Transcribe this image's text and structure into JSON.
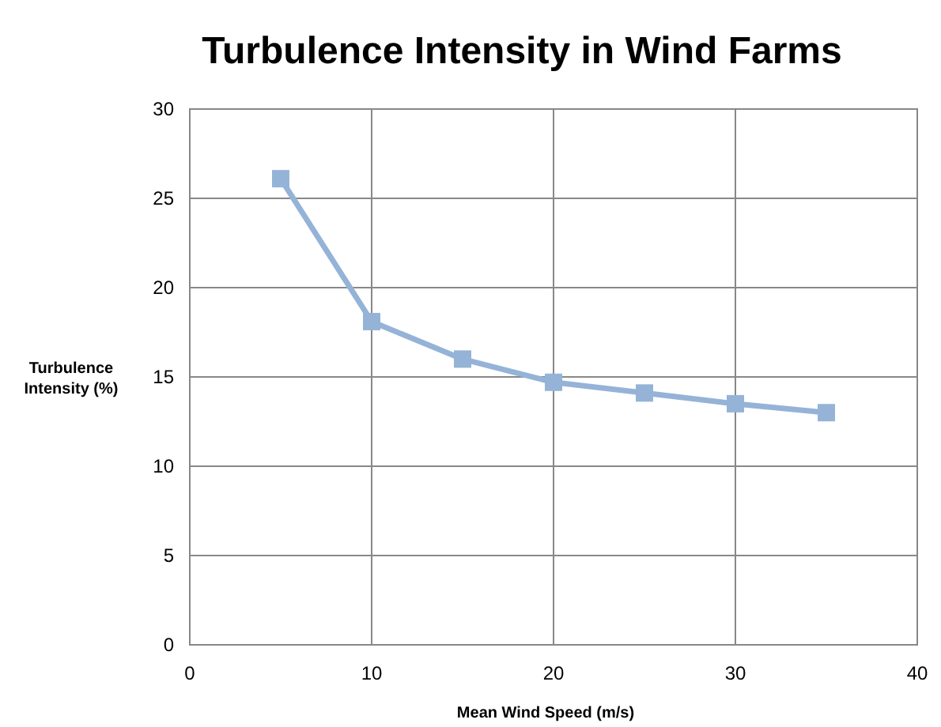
{
  "chart_data": {
    "type": "line",
    "title": "Turbulence Intensity in Wind Farms",
    "xlabel": "Mean Wind Speed (m/s)",
    "ylabel": "Turbulence Intensity (%)",
    "x": [
      5,
      10,
      15,
      20,
      25,
      30,
      35
    ],
    "series": [
      {
        "color": "#95b3d7",
        "values": [
          26.1,
          18.1,
          16.0,
          14.7,
          14.1,
          13.5,
          13.0
        ]
      }
    ],
    "xlim": [
      0,
      40
    ],
    "xticks": [
      0,
      10,
      20,
      30,
      40
    ],
    "ylim": [
      0,
      30
    ],
    "yticks": [
      0,
      5,
      10,
      15,
      20,
      25,
      30
    ],
    "grid": true,
    "marker": "square",
    "line_style": "solid"
  }
}
